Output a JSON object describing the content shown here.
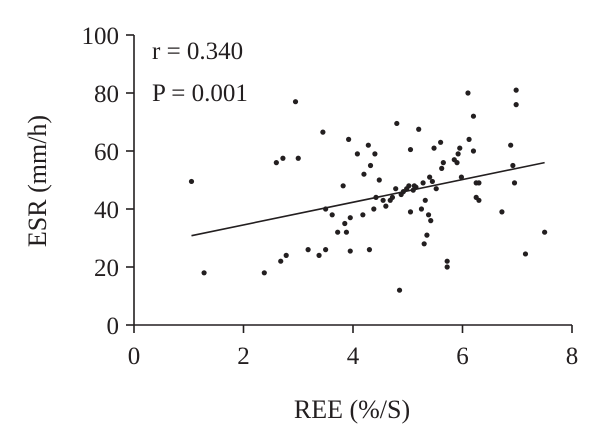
{
  "chart_data": {
    "type": "scatter",
    "xlabel": "REE (%/S)",
    "ylabel": "ESR (mm/h)",
    "xlim": [
      0,
      8
    ],
    "ylim": [
      0,
      100
    ],
    "x_ticks": [
      "0",
      "2",
      "4",
      "6",
      "8"
    ],
    "y_ticks": [
      "0",
      "20",
      "40",
      "60",
      "80",
      "100"
    ],
    "annotations": [
      "r = 0.340",
      "P = 0.001"
    ],
    "trendline": {
      "x": [
        1.05,
        7.5
      ],
      "y": [
        30.8,
        56.0
      ]
    },
    "colors": {
      "points": "#231f20",
      "axis": "#231f20",
      "text": "#231f20"
    },
    "points": [
      [
        1.05,
        49.5
      ],
      [
        1.28,
        18
      ],
      [
        2.38,
        18
      ],
      [
        2.6,
        56
      ],
      [
        2.68,
        22
      ],
      [
        2.72,
        57.5
      ],
      [
        2.78,
        24
      ],
      [
        2.95,
        77
      ],
      [
        3.0,
        57.5
      ],
      [
        3.18,
        26
      ],
      [
        3.38,
        24
      ],
      [
        3.45,
        66.5
      ],
      [
        3.5,
        40
      ],
      [
        3.5,
        26
      ],
      [
        3.62,
        38
      ],
      [
        3.72,
        32
      ],
      [
        3.82,
        48
      ],
      [
        3.85,
        35
      ],
      [
        3.88,
        32
      ],
      [
        3.92,
        64
      ],
      [
        3.95,
        37
      ],
      [
        3.95,
        25.5
      ],
      [
        4.08,
        59
      ],
      [
        4.18,
        38
      ],
      [
        4.2,
        52
      ],
      [
        4.28,
        62
      ],
      [
        4.3,
        26
      ],
      [
        4.32,
        55
      ],
      [
        4.38,
        40
      ],
      [
        4.4,
        59
      ],
      [
        4.42,
        44
      ],
      [
        4.48,
        50
      ],
      [
        4.55,
        43
      ],
      [
        4.6,
        41
      ],
      [
        4.68,
        43
      ],
      [
        4.72,
        44
      ],
      [
        4.78,
        47
      ],
      [
        4.8,
        69.5
      ],
      [
        4.85,
        12
      ],
      [
        4.88,
        45
      ],
      [
        4.92,
        46
      ],
      [
        4.98,
        47
      ],
      [
        5.02,
        48
      ],
      [
        5.05,
        60.5
      ],
      [
        5.05,
        39
      ],
      [
        5.1,
        46.5
      ],
      [
        5.12,
        48
      ],
      [
        5.15,
        47.5
      ],
      [
        5.2,
        67.5
      ],
      [
        5.25,
        40
      ],
      [
        5.28,
        49
      ],
      [
        5.3,
        28
      ],
      [
        5.32,
        43
      ],
      [
        5.35,
        31
      ],
      [
        5.38,
        38
      ],
      [
        5.4,
        51
      ],
      [
        5.42,
        36
      ],
      [
        5.45,
        49.5
      ],
      [
        5.48,
        61
      ],
      [
        5.52,
        47
      ],
      [
        5.6,
        63
      ],
      [
        5.62,
        54
      ],
      [
        5.65,
        56
      ],
      [
        5.72,
        22
      ],
      [
        5.72,
        20
      ],
      [
        5.85,
        57
      ],
      [
        5.9,
        56
      ],
      [
        5.92,
        59
      ],
      [
        5.95,
        61
      ],
      [
        5.98,
        51
      ],
      [
        6.1,
        80
      ],
      [
        6.12,
        64
      ],
      [
        6.2,
        72
      ],
      [
        6.2,
        60
      ],
      [
        6.25,
        49
      ],
      [
        6.25,
        44
      ],
      [
        6.3,
        43
      ],
      [
        6.3,
        49
      ],
      [
        6.72,
        39
      ],
      [
        6.88,
        62
      ],
      [
        6.92,
        55
      ],
      [
        6.95,
        49
      ],
      [
        6.98,
        81
      ],
      [
        6.98,
        76
      ],
      [
        7.15,
        24.5
      ],
      [
        7.5,
        32
      ]
    ]
  }
}
